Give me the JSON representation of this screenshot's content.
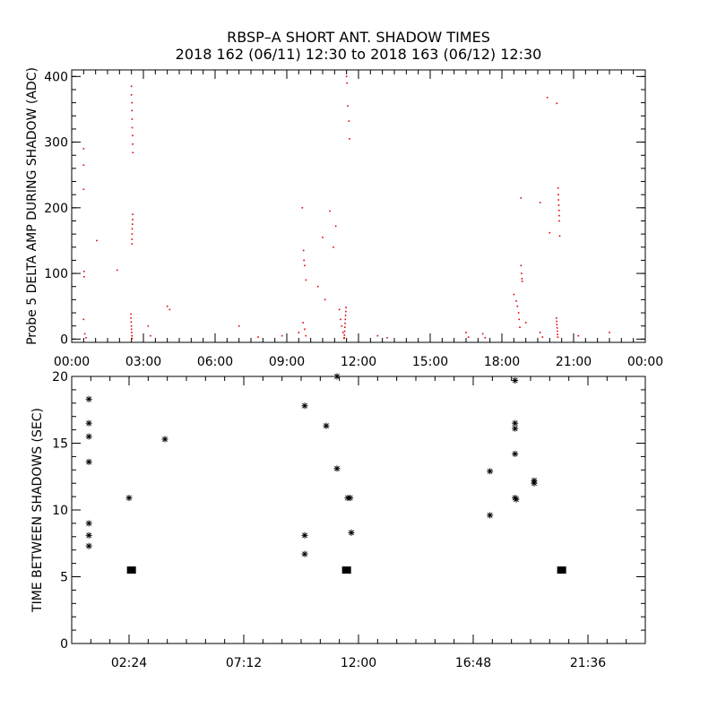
{
  "title_line1": "RBSP–A SHORT ANT. SHADOW TIMES",
  "title_line2": "2018 162 (06/11) 12:30 to 2018 163 (06/12) 12:30",
  "colors": {
    "red_points": "#dd0000",
    "black": "#000000"
  },
  "chart_data": [
    {
      "type": "scatter",
      "title": "",
      "xlabel": "",
      "ylabel": "Probe 5 DELTA AMP DURING SHADOW (ADC)",
      "x_units": "hours of day",
      "xlim": [
        0,
        24
      ],
      "ylim": [
        -5,
        410
      ],
      "x_ticks": [
        0,
        3,
        6,
        9,
        12,
        15,
        18,
        21,
        24
      ],
      "x_tick_labels": [
        "00:00",
        "03:00",
        "06:00",
        "09:00",
        "12:00",
        "15:00",
        "18:00",
        "21:00",
        "00:00"
      ],
      "y_ticks": [
        0,
        100,
        200,
        300,
        400
      ],
      "y_tick_labels": [
        "0",
        "100",
        "200",
        "300",
        "400"
      ],
      "marker_color": "#dd0000",
      "points": [
        [
          0.5,
          290
        ],
        [
          0.5,
          265
        ],
        [
          0.5,
          228
        ],
        [
          0.52,
          103
        ],
        [
          0.52,
          95
        ],
        [
          0.5,
          30
        ],
        [
          0.55,
          8
        ],
        [
          0.6,
          2
        ],
        [
          1.05,
          150
        ],
        [
          1.9,
          105
        ],
        [
          2.5,
          385
        ],
        [
          2.5,
          372
        ],
        [
          2.52,
          360
        ],
        [
          2.52,
          348
        ],
        [
          2.53,
          335
        ],
        [
          2.53,
          322
        ],
        [
          2.55,
          310
        ],
        [
          2.55,
          297
        ],
        [
          2.56,
          284
        ],
        [
          2.55,
          190
        ],
        [
          2.55,
          182
        ],
        [
          2.54,
          175
        ],
        [
          2.53,
          168
        ],
        [
          2.53,
          160
        ],
        [
          2.52,
          152
        ],
        [
          2.52,
          145
        ],
        [
          2.48,
          38
        ],
        [
          2.48,
          32
        ],
        [
          2.49,
          26
        ],
        [
          2.5,
          20
        ],
        [
          2.5,
          15
        ],
        [
          2.51,
          10
        ],
        [
          2.52,
          5
        ],
        [
          2.53,
          1
        ],
        [
          3.2,
          20
        ],
        [
          3.3,
          5
        ],
        [
          4.0,
          50
        ],
        [
          4.1,
          45
        ],
        [
          7.0,
          20
        ],
        [
          7.8,
          3
        ],
        [
          8.8,
          5
        ],
        [
          9.5,
          10
        ],
        [
          9.65,
          200
        ],
        [
          9.7,
          135
        ],
        [
          9.72,
          120
        ],
        [
          9.75,
          112
        ],
        [
          9.8,
          90
        ],
        [
          9.68,
          25
        ],
        [
          9.75,
          15
        ],
        [
          9.8,
          5
        ],
        [
          10.5,
          155
        ],
        [
          10.3,
          80
        ],
        [
          10.6,
          60
        ],
        [
          10.8,
          195
        ],
        [
          10.95,
          140
        ],
        [
          11.05,
          172
        ],
        [
          11.2,
          45
        ],
        [
          11.25,
          30
        ],
        [
          11.3,
          20
        ],
        [
          11.35,
          10
        ],
        [
          11.4,
          2
        ],
        [
          11.5,
          400
        ],
        [
          11.52,
          390
        ],
        [
          11.55,
          355
        ],
        [
          11.6,
          332
        ],
        [
          11.62,
          305
        ],
        [
          11.48,
          48
        ],
        [
          11.47,
          42
        ],
        [
          11.46,
          36
        ],
        [
          11.45,
          30
        ],
        [
          11.44,
          24
        ],
        [
          11.43,
          18
        ],
        [
          11.42,
          12
        ],
        [
          11.41,
          6
        ],
        [
          11.4,
          1
        ],
        [
          12.8,
          5
        ],
        [
          13.2,
          2
        ],
        [
          16.5,
          10
        ],
        [
          16.6,
          3
        ],
        [
          17.2,
          8
        ],
        [
          17.3,
          2
        ],
        [
          18.5,
          68
        ],
        [
          18.6,
          58
        ],
        [
          18.65,
          50
        ],
        [
          18.7,
          40
        ],
        [
          18.72,
          30
        ],
        [
          18.75,
          18
        ],
        [
          18.8,
          215
        ],
        [
          18.8,
          112
        ],
        [
          18.82,
          100
        ],
        [
          18.84,
          92
        ],
        [
          18.85,
          88
        ],
        [
          19.0,
          25
        ],
        [
          19.6,
          10
        ],
        [
          19.7,
          3
        ],
        [
          19.9,
          368
        ],
        [
          19.6,
          208
        ],
        [
          20.0,
          162
        ],
        [
          20.3,
          359
        ],
        [
          20.35,
          230
        ],
        [
          20.36,
          220
        ],
        [
          20.37,
          212
        ],
        [
          20.38,
          204
        ],
        [
          20.39,
          196
        ],
        [
          20.4,
          188
        ],
        [
          20.4,
          180
        ],
        [
          20.42,
          157
        ],
        [
          20.28,
          32
        ],
        [
          20.29,
          27
        ],
        [
          20.3,
          22
        ],
        [
          20.31,
          17
        ],
        [
          20.32,
          12
        ],
        [
          20.33,
          7
        ],
        [
          20.34,
          3
        ],
        [
          21.2,
          5
        ],
        [
          22.5,
          10
        ]
      ]
    },
    {
      "type": "scatter",
      "title": "",
      "xlabel": "",
      "ylabel": "TIME BETWEEN SHADOWS (SEC)",
      "x_units": "hours of day",
      "xlim": [
        0,
        24
      ],
      "ylim": [
        0,
        20
      ],
      "x_ticks": [
        2.4,
        7.2,
        12.0,
        16.8,
        21.6
      ],
      "x_tick_labels": [
        "02:24",
        "07:12",
        "12:00",
        "16:48",
        "21:36"
      ],
      "y_ticks": [
        0,
        5,
        10,
        15,
        20
      ],
      "y_tick_labels": [
        "0",
        "5",
        "10",
        "15",
        "20"
      ],
      "asterisk_points": [
        [
          0.72,
          18.3
        ],
        [
          0.72,
          16.5
        ],
        [
          0.72,
          15.5
        ],
        [
          0.72,
          13.6
        ],
        [
          0.72,
          9.0
        ],
        [
          0.72,
          8.1
        ],
        [
          0.72,
          7.3
        ],
        [
          2.4,
          10.9
        ],
        [
          3.9,
          15.3
        ],
        [
          9.75,
          17.8
        ],
        [
          9.75,
          8.1
        ],
        [
          9.75,
          6.7
        ],
        [
          10.65,
          16.3
        ],
        [
          11.1,
          20.0
        ],
        [
          11.1,
          13.1
        ],
        [
          11.55,
          10.9
        ],
        [
          11.65,
          10.9
        ],
        [
          11.7,
          8.3
        ],
        [
          17.5,
          12.9
        ],
        [
          17.5,
          9.6
        ],
        [
          18.55,
          19.7
        ],
        [
          18.55,
          16.5
        ],
        [
          18.55,
          16.1
        ],
        [
          18.55,
          14.2
        ],
        [
          18.55,
          10.9
        ],
        [
          18.6,
          10.8
        ],
        [
          19.35,
          12.2
        ],
        [
          19.35,
          12.0
        ]
      ],
      "square_points": [
        [
          2.5,
          5.5
        ],
        [
          11.5,
          5.5
        ],
        [
          20.5,
          5.5
        ]
      ]
    }
  ]
}
